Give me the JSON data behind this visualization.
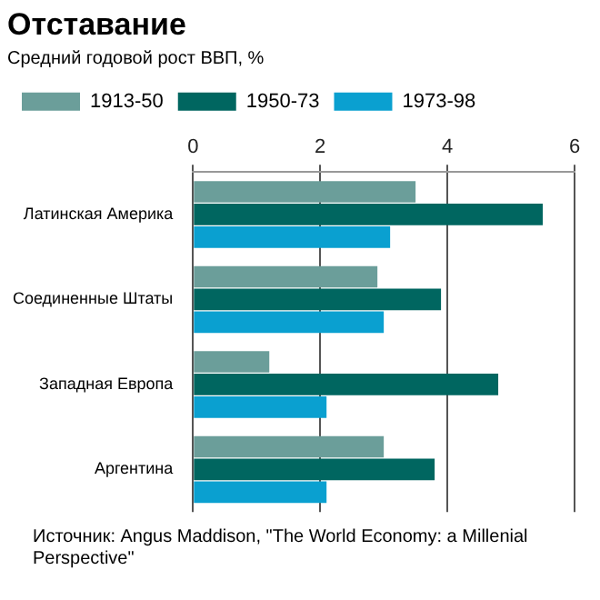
{
  "chart_data": {
    "type": "bar",
    "orientation": "horizontal",
    "title": "Отставание",
    "subtitle": "Средний годовой рост ВВП, %",
    "categories": [
      "Латинская Америка",
      "Соединенные Штаты",
      "Западная Европа",
      "Аргентина"
    ],
    "series": [
      {
        "name": "1913-50",
        "color": "#6b9e9a",
        "values": [
          3.5,
          2.9,
          1.2,
          3.0
        ]
      },
      {
        "name": "1950-73",
        "color": "#006660",
        "values": [
          5.5,
          3.9,
          4.8,
          3.8
        ]
      },
      {
        "name": "1973-98",
        "color": "#0aa0d0",
        "values": [
          3.1,
          3.0,
          2.1,
          2.1
        ]
      }
    ],
    "xlim": [
      0,
      6
    ],
    "xticks": [
      0,
      2,
      4,
      6
    ],
    "grid": "x",
    "legend": "top",
    "annotations": [
      "Источник: Angus Maddison, \"The World Economy: a Millenial Perspective\""
    ]
  }
}
